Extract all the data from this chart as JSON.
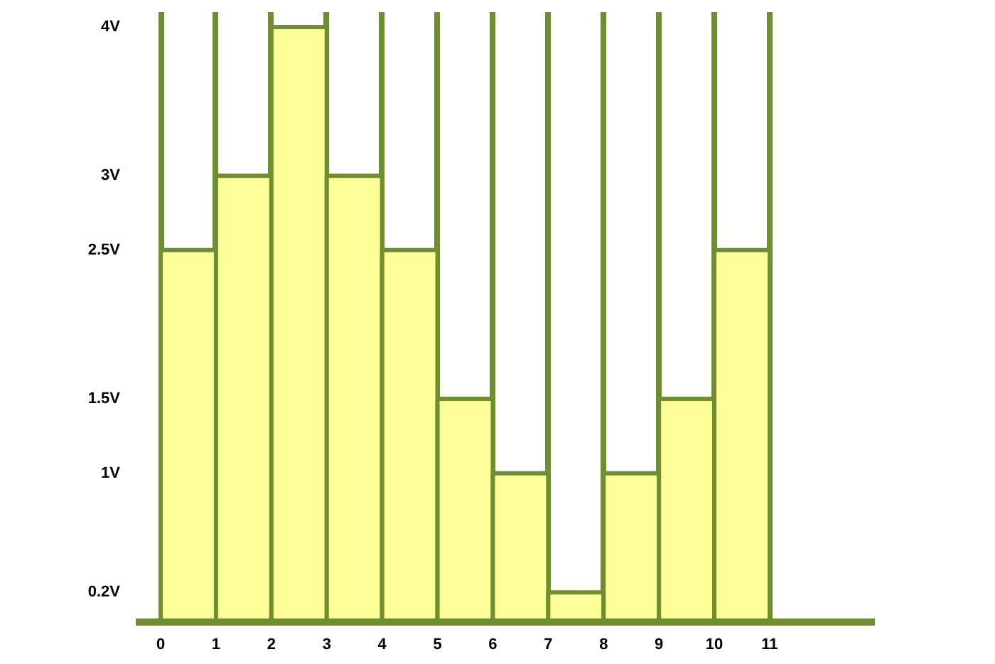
{
  "chart_data": {
    "type": "histogram",
    "bins": [
      0,
      1,
      2,
      3,
      4,
      5,
      6,
      7,
      8,
      9,
      10,
      11
    ],
    "values": [
      2.5,
      3,
      4,
      3,
      2.5,
      1.5,
      1,
      0.2,
      1,
      1.5,
      2.5
    ],
    "color": "#ffff99",
    "xlim": [
      -0.45,
      12.9
    ],
    "xticks": [
      0,
      1,
      2,
      3,
      4,
      5,
      6,
      7,
      8,
      9,
      10,
      11
    ],
    "ylim": [
      0,
      4.1
    ],
    "yticks": [
      {
        "value": 0.2,
        "label": "0.2V"
      },
      {
        "value": 1,
        "label": "1V"
      },
      {
        "value": 1.5,
        "label": "1.5V"
      },
      {
        "value": 2.5,
        "label": "2.5V"
      },
      {
        "value": 3,
        "label": "3V"
      },
      {
        "value": 4,
        "label": "4V"
      }
    ],
    "grid": "x"
  }
}
